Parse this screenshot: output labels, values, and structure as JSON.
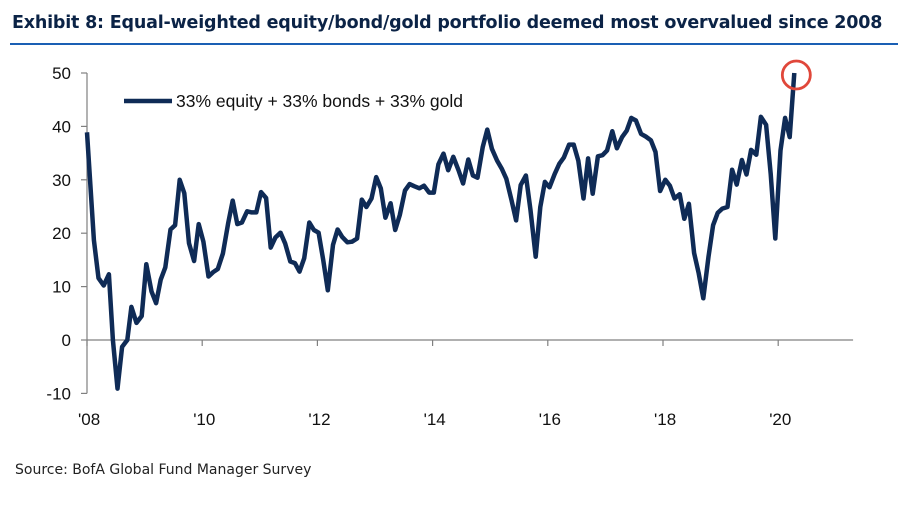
{
  "chart_data": {
    "type": "line",
    "title": "Exhibit 8: Equal-weighted equity/bond/gold portfolio deemed most overvalued since 2008",
    "source": "Source: BofA Global Fund Manager Survey",
    "xlabel": "",
    "ylabel": "",
    "ylim": [
      -10,
      50
    ],
    "xlim": [
      2008,
      2021.3
    ],
    "yticks": [
      -10,
      0,
      10,
      20,
      30,
      40,
      50
    ],
    "xticks": [
      {
        "value": 2008,
        "label": "'08"
      },
      {
        "value": 2010,
        "label": "'10"
      },
      {
        "value": 2012,
        "label": "'12"
      },
      {
        "value": 2014,
        "label": "'14"
      },
      {
        "value": 2016,
        "label": "'16"
      },
      {
        "value": 2018,
        "label": "'18"
      },
      {
        "value": 2020,
        "label": "'20"
      }
    ],
    "legend": {
      "label": "33% equity + 33% bonds + 33% gold",
      "placement": "top-left"
    },
    "annotation": {
      "type": "circle",
      "x": 2020.28,
      "y": 50,
      "color": "#e0473a"
    },
    "line_color": "#0f2b56",
    "series": [
      {
        "name": "33% equity + 33% bonds + 33% gold",
        "points": [
          [
            2008.0,
            38.9
          ],
          [
            2008.12,
            18.7
          ],
          [
            2008.2,
            11.6
          ],
          [
            2008.29,
            10.2
          ],
          [
            2008.38,
            12.3
          ],
          [
            2008.45,
            0
          ],
          [
            2008.53,
            -9.1
          ],
          [
            2008.61,
            -1.3
          ],
          [
            2008.7,
            0
          ],
          [
            2008.77,
            6.2
          ],
          [
            2008.86,
            3.2
          ],
          [
            2008.95,
            4.5
          ],
          [
            2009.03,
            14.2
          ],
          [
            2009.12,
            9.1
          ],
          [
            2009.2,
            6.9
          ],
          [
            2009.28,
            11.3
          ],
          [
            2009.36,
            13.6
          ],
          [
            2009.45,
            20.7
          ],
          [
            2009.53,
            21.5
          ],
          [
            2009.61,
            30
          ],
          [
            2009.69,
            27.5
          ],
          [
            2009.77,
            18.1
          ],
          [
            2009.86,
            14.8
          ],
          [
            2009.94,
            21.7
          ],
          [
            2010.02,
            18.4
          ],
          [
            2010.11,
            11.9
          ],
          [
            2010.19,
            12.7
          ],
          [
            2010.27,
            13.3
          ],
          [
            2010.36,
            16.2
          ],
          [
            2010.45,
            21.8
          ],
          [
            2010.53,
            26.1
          ],
          [
            2010.61,
            21.7
          ],
          [
            2010.69,
            22
          ],
          [
            2010.78,
            24.1
          ],
          [
            2010.86,
            23.9
          ],
          [
            2010.94,
            23.9
          ],
          [
            2011.02,
            27.7
          ],
          [
            2011.11,
            26.6
          ],
          [
            2011.19,
            17.3
          ],
          [
            2011.27,
            19.2
          ],
          [
            2011.36,
            20.1
          ],
          [
            2011.44,
            18.1
          ],
          [
            2011.53,
            14.7
          ],
          [
            2011.61,
            14.4
          ],
          [
            2011.69,
            12.8
          ],
          [
            2011.77,
            15.3
          ],
          [
            2011.86,
            22
          ],
          [
            2011.94,
            20.6
          ],
          [
            2012.02,
            20.1
          ],
          [
            2012.1,
            15
          ],
          [
            2012.18,
            9.3
          ],
          [
            2012.27,
            17.8
          ],
          [
            2012.35,
            20.7
          ],
          [
            2012.43,
            19.3
          ],
          [
            2012.52,
            18.3
          ],
          [
            2012.6,
            18.4
          ],
          [
            2012.69,
            19
          ],
          [
            2012.77,
            26.3
          ],
          [
            2012.85,
            24.9
          ],
          [
            2012.94,
            26.5
          ],
          [
            2013.02,
            30.5
          ],
          [
            2013.1,
            28.4
          ],
          [
            2013.18,
            22.9
          ],
          [
            2013.27,
            25.6
          ],
          [
            2013.35,
            20.6
          ],
          [
            2013.43,
            23.4
          ],
          [
            2013.52,
            28
          ],
          [
            2013.6,
            29.2
          ],
          [
            2013.68,
            28.8
          ],
          [
            2013.77,
            28.4
          ],
          [
            2013.85,
            28.9
          ],
          [
            2013.94,
            27.6
          ],
          [
            2014.02,
            27.6
          ],
          [
            2014.1,
            32.9
          ],
          [
            2014.19,
            34.9
          ],
          [
            2014.27,
            31.8
          ],
          [
            2014.36,
            34.3
          ],
          [
            2014.45,
            31.8
          ],
          [
            2014.53,
            29.3
          ],
          [
            2014.62,
            33.8
          ],
          [
            2014.7,
            30.8
          ],
          [
            2014.78,
            30.4
          ],
          [
            2014.87,
            36.1
          ],
          [
            2014.95,
            39.4
          ],
          [
            2015.03,
            35.8
          ],
          [
            2015.12,
            33.6
          ],
          [
            2015.2,
            32.1
          ],
          [
            2015.28,
            30.2
          ],
          [
            2015.37,
            26.2
          ],
          [
            2015.45,
            22.4
          ],
          [
            2015.53,
            29
          ],
          [
            2015.62,
            30.8
          ],
          [
            2015.7,
            24.3
          ],
          [
            2015.79,
            15.6
          ],
          [
            2015.87,
            24.9
          ],
          [
            2015.95,
            29.6
          ],
          [
            2016.03,
            28.6
          ],
          [
            2016.12,
            31.1
          ],
          [
            2016.2,
            33
          ],
          [
            2016.28,
            34.2
          ],
          [
            2016.37,
            36.6
          ],
          [
            2016.45,
            36.6
          ],
          [
            2016.53,
            33.6
          ],
          [
            2016.62,
            26.5
          ],
          [
            2016.7,
            34
          ],
          [
            2016.78,
            27.4
          ],
          [
            2016.87,
            34.4
          ],
          [
            2016.95,
            34.6
          ],
          [
            2017.03,
            35.5
          ],
          [
            2017.12,
            39.1
          ],
          [
            2017.2,
            35.9
          ],
          [
            2017.29,
            38
          ],
          [
            2017.37,
            39.2
          ],
          [
            2017.45,
            41.6
          ],
          [
            2017.53,
            41.1
          ],
          [
            2017.62,
            38.6
          ],
          [
            2017.7,
            38.1
          ],
          [
            2017.79,
            37.4
          ],
          [
            2017.87,
            35.2
          ],
          [
            2017.95,
            27.9
          ],
          [
            2018.04,
            30
          ],
          [
            2018.12,
            28.9
          ],
          [
            2018.2,
            26.5
          ],
          [
            2018.29,
            27.3
          ],
          [
            2018.37,
            22.7
          ],
          [
            2018.45,
            25.5
          ],
          [
            2018.54,
            16.3
          ],
          [
            2018.62,
            12.5
          ],
          [
            2018.7,
            7.8
          ],
          [
            2018.79,
            15.6
          ],
          [
            2018.87,
            21.5
          ],
          [
            2018.95,
            23.8
          ],
          [
            2019.03,
            24.6
          ],
          [
            2019.12,
            24.9
          ],
          [
            2019.2,
            31.9
          ],
          [
            2019.28,
            29.1
          ],
          [
            2019.37,
            33.7
          ],
          [
            2019.45,
            31
          ],
          [
            2019.53,
            35.6
          ],
          [
            2019.62,
            34.7
          ],
          [
            2019.7,
            41.8
          ],
          [
            2019.79,
            40.3
          ],
          [
            2019.87,
            31.1
          ],
          [
            2019.95,
            19
          ],
          [
            2020.04,
            35.5
          ],
          [
            2020.12,
            41.6
          ],
          [
            2020.2,
            38
          ],
          [
            2020.28,
            50
          ]
        ]
      }
    ]
  }
}
